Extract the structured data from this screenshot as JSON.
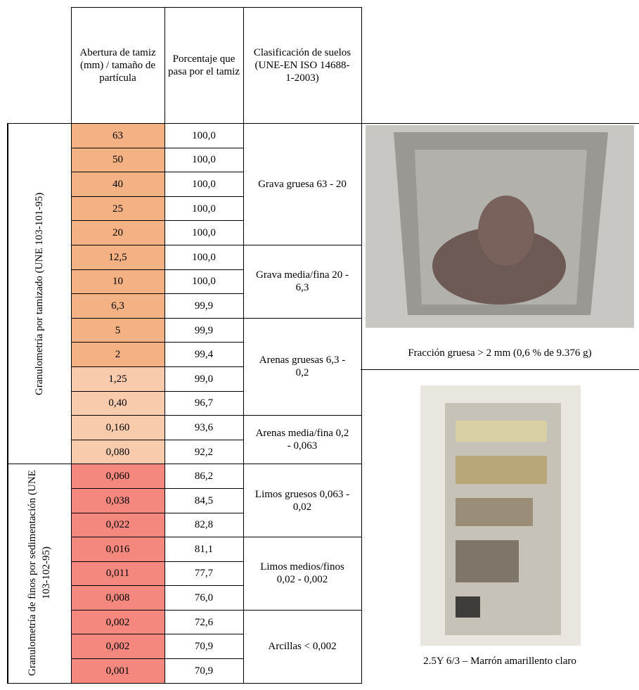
{
  "table": {
    "headers": [
      "Abertura de tamiz (mm) / tamaño de partícula",
      "Porcentaje que pasa por el tamiz",
      "Clasificación de suelos (UNE-EN ISO 14688-1-2003)"
    ],
    "sections": [
      {
        "label": "Granulometría  por tamizado (UNE 103-101-95)",
        "groups": [
          {
            "class": "Grava gruesa 63 - 20",
            "rows": [
              {
                "size": "63",
                "pass": "100,0",
                "color": "#f4b183"
              },
              {
                "size": "50",
                "pass": "100,0",
                "color": "#f4b183"
              },
              {
                "size": "40",
                "pass": "100,0",
                "color": "#f4b183"
              },
              {
                "size": "25",
                "pass": "100,0",
                "color": "#f4b183"
              },
              {
                "size": "20",
                "pass": "100,0",
                "color": "#f4b183"
              }
            ]
          },
          {
            "class": "Grava media/fina 20 - 6,3",
            "rows": [
              {
                "size": "12,5",
                "pass": "100,0",
                "color": "#f4b183"
              },
              {
                "size": "10",
                "pass": "100,0",
                "color": "#f4b183"
              },
              {
                "size": "6,3",
                "pass": "99,9",
                "color": "#f4b183"
              }
            ]
          },
          {
            "class": "Arenas gruesas 6,3 - 0,2",
            "rows": [
              {
                "size": "5",
                "pass": "99,9",
                "color": "#f4b183"
              },
              {
                "size": "2",
                "pass": "99,4",
                "color": "#f4b183"
              },
              {
                "size": "1,25",
                "pass": "99,0",
                "color": "#f8cbad"
              },
              {
                "size": "0,40",
                "pass": "96,7",
                "color": "#f8cbad"
              }
            ]
          },
          {
            "class": "Arenas media/fina 0,2 - 0,063",
            "rows": [
              {
                "size": "0,160",
                "pass": "93,6",
                "color": "#f8cbad"
              },
              {
                "size": "0,080",
                "pass": "92,2",
                "color": "#f8cbad"
              }
            ]
          }
        ]
      },
      {
        "label": "Granulometría de finos por sedimentación (UNE 103-102-95)",
        "groups": [
          {
            "class": "Limos gruesos 0,063 - 0,02",
            "rows": [
              {
                "size": "0,060",
                "pass": "86,2",
                "color": "#f4877e"
              },
              {
                "size": "0,038",
                "pass": "84,5",
                "color": "#f4877e"
              },
              {
                "size": "0,022",
                "pass": "82,8",
                "color": "#f4877e"
              }
            ]
          },
          {
            "class": "Limos medios/finos 0,02 - 0,002",
            "rows": [
              {
                "size": "0,016",
                "pass": "81,1",
                "color": "#f4877e"
              },
              {
                "size": "0,011",
                "pass": "77,7",
                "color": "#f4877e"
              },
              {
                "size": "0,008",
                "pass": "76,0",
                "color": "#f4877e"
              }
            ]
          },
          {
            "class": "Arcillas < 0,002",
            "rows": [
              {
                "size": "0,002",
                "pass": "72,6",
                "color": "#f4877e"
              },
              {
                "size": "0,002",
                "pass": "70,9",
                "color": "#f4877e"
              },
              {
                "size": "0,001",
                "pass": "70,9",
                "color": "#f4877e"
              }
            ]
          }
        ]
      }
    ]
  },
  "figures": [
    {
      "caption": "Fracción gruesa > 2 mm (0,6 % de 9.376 g)"
    },
    {
      "caption": "2.5Y 6/3 – Marrón amarillento claro"
    }
  ]
}
